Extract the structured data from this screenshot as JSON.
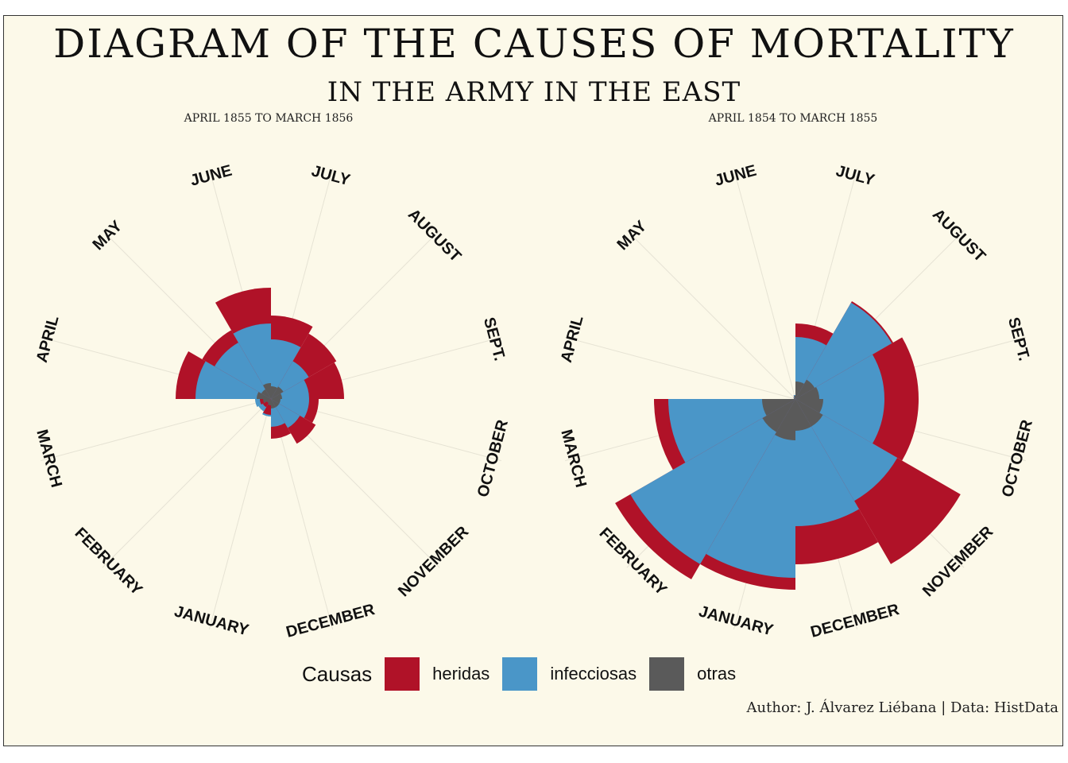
{
  "title": "DIAGRAM OF THE CAUSES OF MORTALITY",
  "subtitle": "IN THE ARMY IN THE EAST",
  "caption": "Author: J. Álvarez Liébana | Data: HistData",
  "legend": {
    "title": "Causas",
    "items": [
      {
        "label": "heridas",
        "color": "#b01228"
      },
      {
        "label": "infecciosas",
        "color": "#4a96c8"
      },
      {
        "label": "otras",
        "color": "#5a5a5a"
      }
    ]
  },
  "chart_data": [
    {
      "type": "polar-area",
      "panel": "APRIL 1855 TO MARCH 1856",
      "months": [
        "APRIL",
        "MAY",
        "JUNE",
        "JULY",
        "AUGUST",
        "SEPT.",
        "OCTOBER",
        "NOVEMBER",
        "DECEMBER",
        "JANUARY",
        "FEBRUARY",
        "MARCH"
      ],
      "series": [
        {
          "name": "heridas",
          "values": [
            120,
            100,
            140,
            105,
            95,
            92,
            60,
            65,
            50,
            20,
            12,
            14
          ]
        },
        {
          "name": "infecciosas",
          "values": [
            95,
            82,
            95,
            75,
            55,
            48,
            48,
            42,
            35,
            22,
            18,
            20
          ]
        },
        {
          "name": "otras",
          "values": [
            18,
            14,
            20,
            16,
            18,
            14,
            12,
            12,
            12,
            8,
            6,
            10
          ]
        }
      ]
    },
    {
      "type": "polar-area",
      "panel": "APRIL 1854 TO MARCH 1855",
      "months": [
        "APRIL",
        "MAY",
        "JUNE",
        "JULY",
        "AUGUST",
        "SEPT.",
        "OCTOBER",
        "NOVEMBER",
        "DECEMBER",
        "JANUARY",
        "FEBRUARY",
        "MARCH"
      ],
      "series": [
        {
          "name": "heridas",
          "values": [
            2,
            3,
            5,
            95,
            142,
            155,
            155,
            240,
            208,
            240,
            262,
            178
          ]
        },
        {
          "name": "infecciosas",
          "values": [
            2,
            3,
            5,
            78,
            140,
            112,
            112,
            148,
            160,
            225,
            240,
            160
          ]
        },
        {
          "name": "otras",
          "values": [
            2,
            2,
            4,
            22,
            28,
            30,
            35,
            40,
            40,
            52,
            48,
            42
          ]
        }
      ]
    }
  ]
}
